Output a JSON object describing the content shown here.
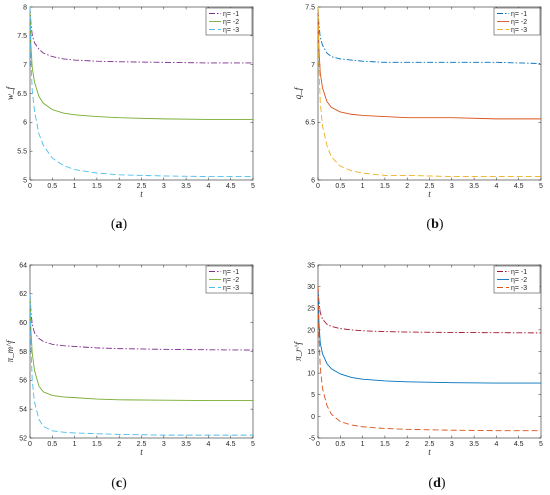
{
  "chart_data": [
    {
      "id": "a",
      "type": "line",
      "caption": "a",
      "xlabel": "t",
      "ylabel": "w_f",
      "xlim": [
        0,
        5
      ],
      "ylim": [
        5,
        8
      ],
      "xticks": [
        0,
        0.5,
        1,
        1.5,
        2,
        2.5,
        3,
        3.5,
        4,
        4.5,
        5
      ],
      "xtick_labels": [
        "0",
        "0.5",
        "1",
        "1.5",
        "2",
        "2.5",
        "3",
        "3.5",
        "4",
        "4.5",
        "5"
      ],
      "yticks": [
        5,
        5.5,
        6,
        6.5,
        7,
        7.5,
        8
      ],
      "ytick_labels": [
        "5",
        "5.5",
        "6",
        "6.5",
        "7",
        "7.5",
        "8"
      ],
      "legend_position": "top-right",
      "series": [
        {
          "name": "η= -1",
          "color": "#7e2f8e",
          "dash": "6 2 1.5 2",
          "x": [
            0,
            0.02,
            0.05,
            0.1,
            0.2,
            0.3,
            0.5,
            0.75,
            1,
            1.5,
            2,
            3,
            4,
            5
          ],
          "y": [
            8.0,
            7.72,
            7.52,
            7.38,
            7.27,
            7.2,
            7.14,
            7.1,
            7.08,
            7.06,
            7.05,
            7.04,
            7.03,
            7.03
          ]
        },
        {
          "name": "η= -2",
          "color": "#77ac30",
          "dash": "",
          "x": [
            0,
            0.02,
            0.05,
            0.1,
            0.2,
            0.3,
            0.5,
            0.75,
            1,
            1.5,
            2,
            3,
            4,
            5
          ],
          "y": [
            8.0,
            7.35,
            6.95,
            6.7,
            6.45,
            6.33,
            6.22,
            6.16,
            6.13,
            6.1,
            6.08,
            6.06,
            6.05,
            6.05
          ]
        },
        {
          "name": "η= -3",
          "color": "#4dbeee",
          "dash": "6 3",
          "x": [
            0,
            0.02,
            0.05,
            0.1,
            0.2,
            0.3,
            0.5,
            0.75,
            1,
            1.5,
            2,
            3,
            4,
            5
          ],
          "y": [
            8.0,
            7.1,
            6.55,
            6.2,
            5.8,
            5.6,
            5.38,
            5.25,
            5.18,
            5.12,
            5.09,
            5.07,
            5.06,
            5.06
          ]
        }
      ]
    },
    {
      "id": "b",
      "type": "line",
      "caption": "b",
      "xlabel": "t",
      "ylabel": "q_f",
      "xlim": [
        0,
        5
      ],
      "ylim": [
        6,
        7.5
      ],
      "xticks": [
        0,
        0.5,
        1,
        1.5,
        2,
        2.5,
        3,
        3.5,
        4,
        4.5,
        5
      ],
      "xtick_labels": [
        "0",
        "0.5",
        "1",
        "1.5",
        "2",
        "2.5",
        "3",
        "3.5",
        "4",
        "4.5",
        "5"
      ],
      "yticks": [
        6,
        6.5,
        7,
        7.5
      ],
      "ytick_labels": [
        "6",
        "6.5",
        "7",
        "7.5"
      ],
      "legend_position": "top-right",
      "series": [
        {
          "name": "η= -1",
          "color": "#0072bd",
          "dash": "6 2 1.5 2",
          "x": [
            0,
            0.02,
            0.05,
            0.1,
            0.2,
            0.3,
            0.5,
            0.75,
            1,
            1.5,
            2,
            3,
            4,
            5
          ],
          "y": [
            7.5,
            7.35,
            7.24,
            7.17,
            7.1,
            7.07,
            7.05,
            7.04,
            7.03,
            7.02,
            7.02,
            7.02,
            7.02,
            7.01
          ]
        },
        {
          "name": "η= -2",
          "color": "#d95319",
          "dash": "",
          "x": [
            0,
            0.02,
            0.05,
            0.1,
            0.2,
            0.3,
            0.5,
            0.75,
            1,
            1.5,
            2,
            3,
            4,
            5
          ],
          "y": [
            7.5,
            7.15,
            6.93,
            6.8,
            6.68,
            6.63,
            6.59,
            6.57,
            6.56,
            6.55,
            6.54,
            6.54,
            6.53,
            6.53
          ]
        },
        {
          "name": "η= -3",
          "color": "#edb120",
          "dash": "6 3",
          "x": [
            0,
            0.02,
            0.05,
            0.1,
            0.2,
            0.3,
            0.5,
            0.75,
            1,
            1.5,
            2,
            3,
            4,
            5
          ],
          "y": [
            7.5,
            7.0,
            6.68,
            6.47,
            6.3,
            6.2,
            6.12,
            6.08,
            6.06,
            6.04,
            6.04,
            6.03,
            6.03,
            6.03
          ]
        }
      ]
    },
    {
      "id": "c",
      "type": "line",
      "caption": "c",
      "xlabel": "t",
      "ylabel": "π_m^f",
      "xlim": [
        0,
        5
      ],
      "ylim": [
        52,
        64
      ],
      "xticks": [
        0,
        0.5,
        1,
        1.5,
        2,
        2.5,
        3,
        3.5,
        4,
        4.5,
        5
      ],
      "xtick_labels": [
        "0",
        "0.5",
        "1",
        "1.5",
        "2",
        "2.5",
        "3",
        "3.5",
        "4",
        "4.5",
        "5"
      ],
      "yticks": [
        52,
        54,
        56,
        58,
        60,
        62,
        64
      ],
      "ytick_labels": [
        "52",
        "54",
        "56",
        "58",
        "60",
        "62",
        "64"
      ],
      "legend_position": "top-right",
      "series": [
        {
          "name": "η= -1",
          "color": "#7e2f8e",
          "dash": "6 2 1.5 2",
          "x": [
            0,
            0.02,
            0.05,
            0.1,
            0.2,
            0.3,
            0.5,
            0.75,
            1,
            1.5,
            2,
            3,
            4,
            5
          ],
          "y": [
            62.0,
            60.8,
            59.9,
            59.3,
            58.9,
            58.7,
            58.5,
            58.4,
            58.35,
            58.25,
            58.2,
            58.15,
            58.12,
            58.1
          ]
        },
        {
          "name": "η= -2",
          "color": "#77ac30",
          "dash": "",
          "x": [
            0,
            0.02,
            0.05,
            0.1,
            0.2,
            0.3,
            0.5,
            0.75,
            1,
            1.5,
            2,
            3,
            4,
            5
          ],
          "y": [
            62.0,
            59.5,
            57.9,
            56.7,
            55.6,
            55.2,
            54.95,
            54.85,
            54.8,
            54.7,
            54.65,
            54.62,
            54.6,
            54.6
          ]
        },
        {
          "name": "η= -3",
          "color": "#4dbeee",
          "dash": "6 3",
          "x": [
            0,
            0.02,
            0.05,
            0.1,
            0.2,
            0.3,
            0.5,
            0.75,
            1,
            1.5,
            2,
            3,
            4,
            5
          ],
          "y": [
            62.0,
            58.5,
            56.0,
            54.5,
            53.3,
            52.8,
            52.5,
            52.4,
            52.35,
            52.3,
            52.25,
            52.2,
            52.2,
            52.2
          ]
        }
      ]
    },
    {
      "id": "d",
      "type": "line",
      "caption": "d",
      "xlabel": "t",
      "ylabel": "π_r^f",
      "xlim": [
        0,
        5
      ],
      "ylim": [
        -5,
        35
      ],
      "xticks": [
        0,
        0.5,
        1,
        1.5,
        2,
        2.5,
        3,
        3.5,
        4,
        4.5,
        5
      ],
      "xtick_labels": [
        "0",
        "0.5",
        "1",
        "1.5",
        "2",
        "2.5",
        "3",
        "3.5",
        "4",
        "4.5",
        "5"
      ],
      "yticks": [
        -5,
        0,
        5,
        10,
        15,
        20,
        25,
        30,
        35
      ],
      "ytick_labels": [
        "-5",
        "0",
        "5",
        "10",
        "15",
        "20",
        "25",
        "30",
        "35"
      ],
      "legend_position": "top-right",
      "series": [
        {
          "name": "η= -1",
          "color": "#a2142f",
          "dash": "6 2 1.5 2",
          "x": [
            0,
            0.02,
            0.05,
            0.1,
            0.2,
            0.3,
            0.5,
            0.75,
            1,
            1.5,
            2,
            3,
            4,
            5
          ],
          "y": [
            30.0,
            26.5,
            24.0,
            22.5,
            21.3,
            20.8,
            20.3,
            20.0,
            19.8,
            19.6,
            19.5,
            19.4,
            19.35,
            19.3
          ]
        },
        {
          "name": "η= -2",
          "color": "#0072bd",
          "dash": "",
          "x": [
            0,
            0.02,
            0.05,
            0.1,
            0.2,
            0.3,
            0.5,
            0.75,
            1,
            1.5,
            2,
            3,
            4,
            5
          ],
          "y": [
            30.0,
            22.0,
            17.0,
            14.5,
            12.2,
            11.0,
            9.8,
            9.0,
            8.6,
            8.2,
            8.0,
            7.8,
            7.7,
            7.7
          ]
        },
        {
          "name": "η= -3",
          "color": "#d95319",
          "dash": "6 3",
          "x": [
            0,
            0.02,
            0.05,
            0.1,
            0.2,
            0.3,
            0.5,
            0.75,
            1,
            1.5,
            2,
            3,
            4,
            5
          ],
          "y": [
            30.0,
            19.0,
            11.5,
            6.5,
            2.5,
            0.5,
            -1.2,
            -2.0,
            -2.4,
            -2.8,
            -3.0,
            -3.2,
            -3.3,
            -3.3
          ]
        }
      ]
    }
  ]
}
